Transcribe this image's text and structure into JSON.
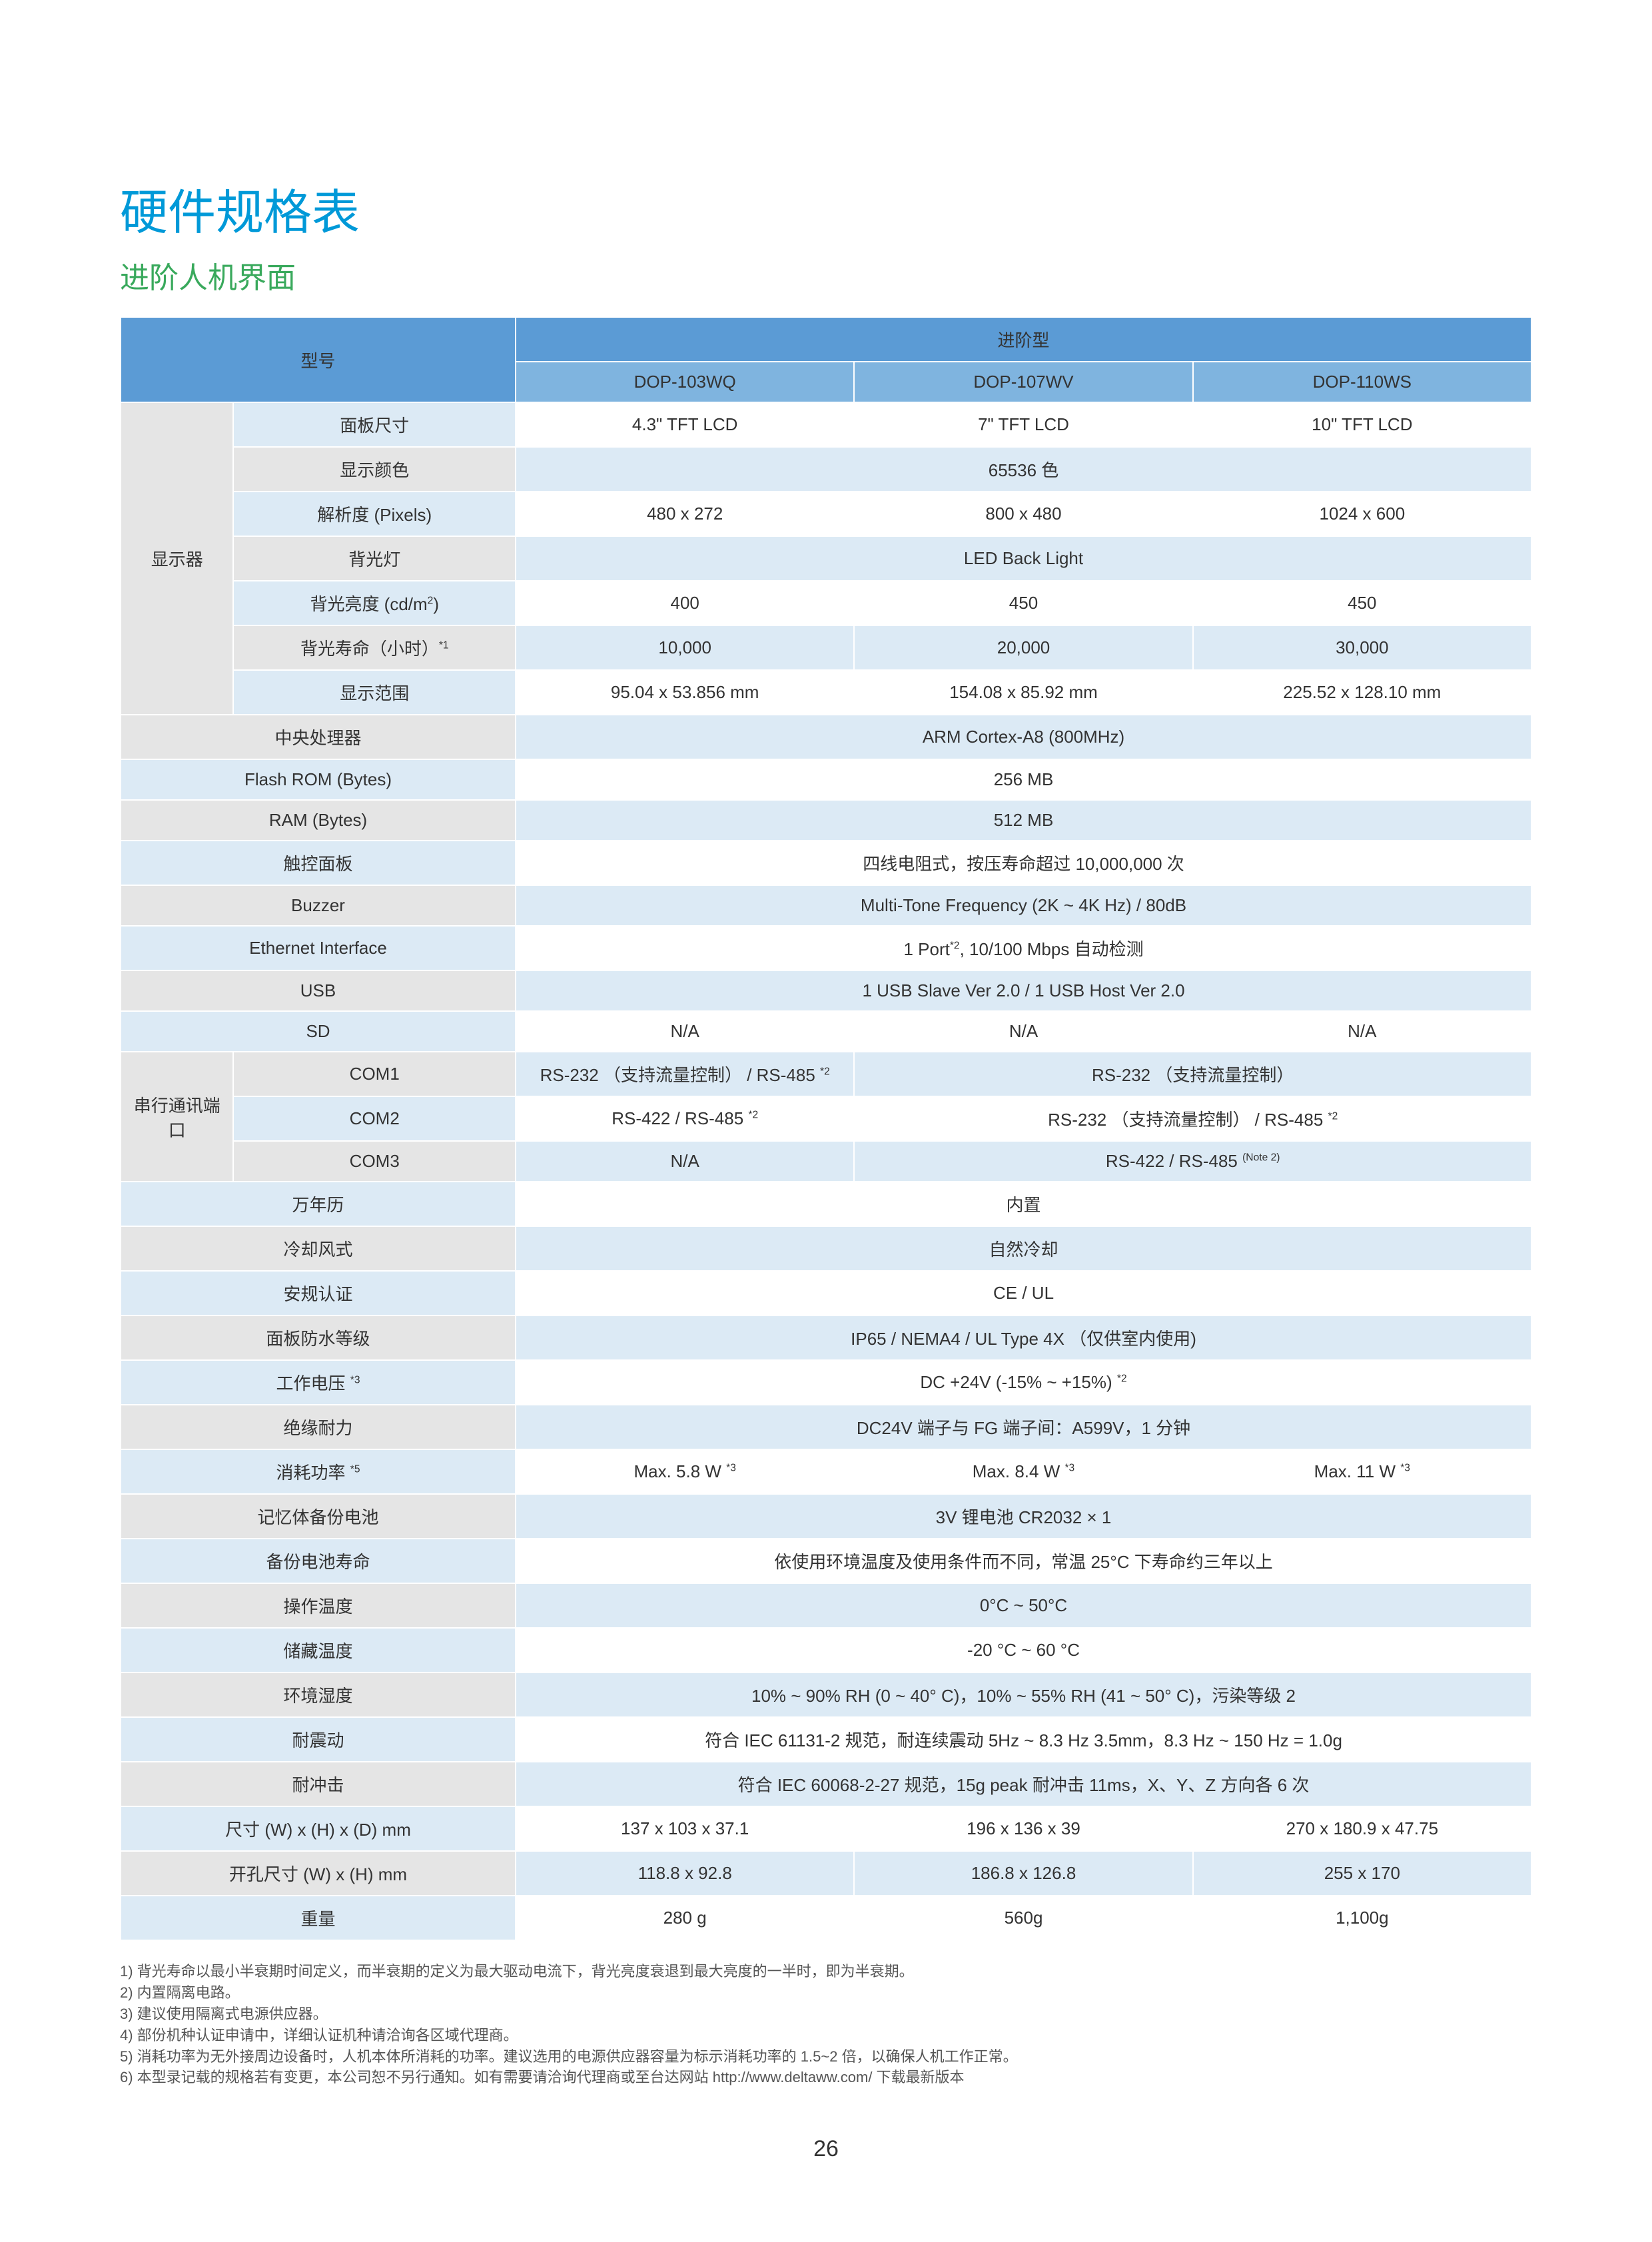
{
  "colors": {
    "title_main": "#0099d8",
    "title_sub": "#39a95c",
    "hdr_dark": "#5b9bd5",
    "hdr_light": "#7fb4df",
    "grey": "#e5e5e5",
    "blue_light": "#dceaf5",
    "white": "#ffffff",
    "text": "#333333",
    "note_text": "#555555"
  },
  "title_main": "硬件规格表",
  "title_sub": "进阶人机界面",
  "header": {
    "model_label": "型号",
    "series_label": "进阶型",
    "models": [
      "DOP-103WQ",
      "DOP-107WV",
      "DOP-110WS"
    ]
  },
  "display_group": "显示器",
  "serial_group": "串行通讯端口",
  "rows": [
    {
      "k": "panel_size",
      "label": "面板尺寸",
      "v": [
        "4.3\" TFT LCD",
        "7\" TFT LCD",
        "10\" TFT LCD"
      ],
      "label_cls": "blue",
      "val_cls": "white",
      "in_disp": true
    },
    {
      "k": "colors",
      "label": "显示颜色",
      "span": "65536 色",
      "label_cls": "grey",
      "val_cls": "blue",
      "in_disp": true
    },
    {
      "k": "res",
      "label": "解析度 (Pixels)",
      "v": [
        "480 x 272",
        "800 x 480",
        "1024 x 600"
      ],
      "label_cls": "blue",
      "val_cls": "white",
      "in_disp": true
    },
    {
      "k": "backlight",
      "label": "背光灯",
      "span": "LED Back Light",
      "label_cls": "grey",
      "val_cls": "blue",
      "in_disp": true
    },
    {
      "k": "brightness",
      "label_html": "背光亮度 (cd/m<sup>2</sup>)",
      "v": [
        "400",
        "450",
        "450"
      ],
      "label_cls": "blue",
      "val_cls": "white",
      "in_disp": true
    },
    {
      "k": "bl_life",
      "label_html": "背光寿命（小时）<sup>*1</sup>",
      "v": [
        "10,000",
        "20,000",
        "30,000"
      ],
      "label_cls": "grey",
      "val_cls": "blue",
      "in_disp": true
    },
    {
      "k": "disp_area",
      "label": "显示范围",
      "v": [
        "95.04 x 53.856 mm",
        "154.08 x 85.92 mm",
        "225.52 x 128.10 mm"
      ],
      "label_cls": "blue",
      "val_cls": "white",
      "in_disp": true
    },
    {
      "k": "cpu",
      "label": "中央处理器",
      "span": "ARM Cortex-A8 (800MHz)",
      "label_cls": "grey",
      "val_cls": "blue",
      "wide": true
    },
    {
      "k": "flash",
      "label": "Flash ROM (Bytes)",
      "span": "256 MB",
      "label_cls": "blue",
      "val_cls": "white",
      "wide": true
    },
    {
      "k": "ram",
      "label": "RAM (Bytes)",
      "span": "512 MB",
      "label_cls": "grey",
      "val_cls": "blue",
      "wide": true
    },
    {
      "k": "touch",
      "label": "触控面板",
      "span": "四线电阻式，按压寿命超过 10,000,000 次",
      "label_cls": "blue",
      "val_cls": "white",
      "wide": true
    },
    {
      "k": "buzzer",
      "label": "Buzzer",
      "span": "Multi-Tone Frequency (2K ~ 4K Hz) / 80dB",
      "label_cls": "grey",
      "val_cls": "blue",
      "wide": true
    },
    {
      "k": "eth",
      "label": "Ethernet Interface",
      "span_html": "1 Port<sup>*2</sup>, 10/100 Mbps 自动检测",
      "label_cls": "blue",
      "val_cls": "white",
      "wide": true
    },
    {
      "k": "usb",
      "label": "USB",
      "span": "1 USB Slave Ver 2.0 / 1 USB Host Ver 2.0",
      "label_cls": "grey",
      "val_cls": "blue",
      "wide": true
    },
    {
      "k": "sd",
      "label": "SD",
      "v": [
        "N/A",
        "N/A",
        "N/A"
      ],
      "label_cls": "blue",
      "val_cls": "white",
      "wide": true
    },
    {
      "k": "com1",
      "label": "COM1",
      "v_html": [
        "RS-232 （支持流量控制） / RS-485 <sup>*2</sup>",
        null,
        null
      ],
      "v23span_html": "RS-232 （支持流量控制）",
      "label_cls": "grey",
      "val_cls": "blue",
      "in_serial": true
    },
    {
      "k": "com2",
      "label": "COM2",
      "v_html": [
        "RS-422 / RS-485 <sup>*2</sup>",
        null,
        null
      ],
      "v23span_html": "RS-232 （支持流量控制） / RS-485 <sup>*2</sup>",
      "label_cls": "blue",
      "val_cls": "white",
      "in_serial": true
    },
    {
      "k": "com3",
      "label": "COM3",
      "v_html": [
        "N/A",
        null,
        null
      ],
      "v23span_html": "RS-422 / RS-485 <sup>(Note 2)</sup>",
      "label_cls": "grey",
      "val_cls": "blue",
      "in_serial": true
    },
    {
      "k": "rtc",
      "label": "万年历",
      "span": "内置",
      "label_cls": "blue",
      "val_cls": "white",
      "wide": true
    },
    {
      "k": "cool",
      "label": "冷却风式",
      "span": "自然冷却",
      "label_cls": "grey",
      "val_cls": "blue",
      "wide": true
    },
    {
      "k": "cert",
      "label": "安规认证",
      "span": "CE / UL",
      "label_cls": "blue",
      "val_cls": "white",
      "wide": true
    },
    {
      "k": "ip",
      "label": "面板防水等级",
      "span": "IP65 / NEMA4 / UL Type 4X （仅供室内使用)",
      "label_cls": "grey",
      "val_cls": "blue",
      "wide": true
    },
    {
      "k": "volt",
      "label_html": "工作电压 <sup>*3</sup>",
      "span_html": "DC +24V (-15% ~ +15%) <sup>*2</sup>",
      "label_cls": "blue",
      "val_cls": "white",
      "wide": true
    },
    {
      "k": "insul",
      "label": "绝缘耐力",
      "span": "DC24V 端子与 FG 端子间：A599V，1 分钟",
      "label_cls": "grey",
      "val_cls": "blue",
      "wide": true
    },
    {
      "k": "power",
      "label_html": "消耗功率 <sup>*5</sup>",
      "v_html": [
        "Max. 5.8 W <sup>*3</sup>",
        "Max. 8.4 W <sup>*3</sup>",
        "Max. 11 W <sup>*3</sup>"
      ],
      "label_cls": "blue",
      "val_cls": "white",
      "wide": true
    },
    {
      "k": "batt",
      "label": "记忆体备份电池",
      "span": "3V 锂电池 CR2032 × 1",
      "label_cls": "grey",
      "val_cls": "blue",
      "wide": true
    },
    {
      "k": "batt_life",
      "label": "备份电池寿命",
      "span": "依使用环境温度及使用条件而不同，常温 25°C 下寿命约三年以上",
      "label_cls": "blue",
      "val_cls": "white",
      "wide": true
    },
    {
      "k": "op_temp",
      "label": "操作温度",
      "span": "0°C ~ 50°C",
      "label_cls": "grey",
      "val_cls": "blue",
      "wide": true
    },
    {
      "k": "stor_temp",
      "label": "储藏温度",
      "span": "-20 °C ~ 60 °C",
      "label_cls": "blue",
      "val_cls": "white",
      "wide": true
    },
    {
      "k": "humidity",
      "label": "环境湿度",
      "span": "10% ~ 90% RH (0 ~ 40° C)，10% ~ 55% RH (41 ~ 50° C)，污染等级 2",
      "label_cls": "grey",
      "val_cls": "blue",
      "wide": true
    },
    {
      "k": "vib",
      "label": "耐震动",
      "span": "符合 IEC 61131-2 规范，耐连续震动 5Hz ~ 8.3 Hz 3.5mm，8.3 Hz ~ 150 Hz = 1.0g",
      "label_cls": "blue",
      "val_cls": "white",
      "wide": true
    },
    {
      "k": "shock",
      "label": "耐冲击",
      "span": "符合 IEC 60068-2-27 规范，15g peak 耐冲击 11ms，X、Y、Z 方向各 6 次",
      "label_cls": "grey",
      "val_cls": "blue",
      "wide": true
    },
    {
      "k": "dim",
      "label": "尺寸 (W) x (H) x (D) mm",
      "v": [
        "137 x 103 x 37.1",
        "196 x 136 x 39",
        "270 x 180.9 x 47.75"
      ],
      "label_cls": "blue",
      "val_cls": "white",
      "wide": true
    },
    {
      "k": "cutout",
      "label": "开孔尺寸 (W) x (H) mm",
      "v": [
        "118.8 x 92.8",
        "186.8 x 126.8",
        "255 x 170"
      ],
      "label_cls": "grey",
      "val_cls": "blue",
      "wide": true
    },
    {
      "k": "weight",
      "label": "重量",
      "v": [
        "280 g",
        "560g",
        "1,100g"
      ],
      "label_cls": "blue",
      "val_cls": "white",
      "wide": true
    }
  ],
  "notes": [
    "1) 背光寿命以最小半衰期时间定义，而半衰期的定义为最大驱动电流下，背光亮度衰退到最大亮度的一半时，即为半衰期。",
    "2) 内置隔离电路。",
    "3) 建议使用隔离式电源供应器。",
    "4) 部份机种认证申请中，详细认证机种请洽询各区域代理商。",
    "5) 消耗功率为无外接周边设备时，人机本体所消耗的功率。建议选用的电源供应器容量为标示消耗功率的 1.5~2 倍，以确保人机工作正常。",
    "6) 本型录记载的规格若有变更，本公司恕不另行通知。如有需要请洽询代理商或至台达网站 http://www.deltaww.com/ 下载最新版本"
  ],
  "page_num": "26"
}
